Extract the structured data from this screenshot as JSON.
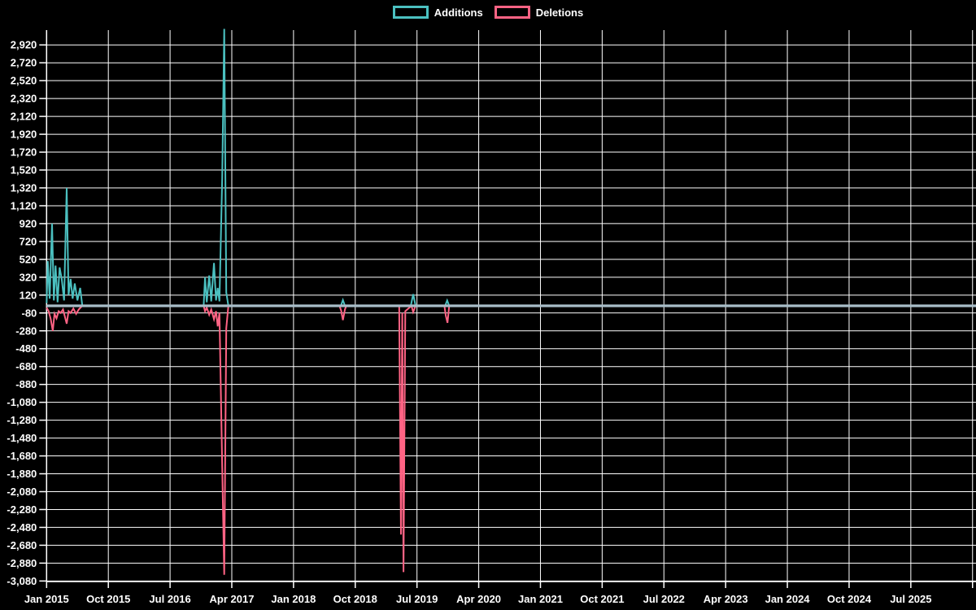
{
  "legend": {
    "items": [
      {
        "label": "Additions",
        "color": "#4BC0C0"
      },
      {
        "label": "Deletions",
        "color": "#FF6384"
      }
    ]
  },
  "chart_data": {
    "type": "line",
    "title": "",
    "xlabel": "",
    "ylabel": "",
    "grid": true,
    "legend_position": "top-center",
    "background_color": "#000000",
    "gridline_color": "#ffffff",
    "zero_line_color": "#A8BDC8",
    "x_axis": {
      "unit": "months since Jan 2015",
      "tick_labels": [
        "Jan 2015",
        "Oct 2015",
        "Jul 2016",
        "Apr 2017",
        "Jan 2018",
        "Oct 2018",
        "Jul 2019",
        "Apr 2020",
        "Jan 2021",
        "Oct 2021",
        "Jul 2022",
        "Apr 2023",
        "Jan 2024",
        "Oct 2024",
        "Jul 2025"
      ],
      "tick_month_offsets": [
        0,
        9,
        18,
        27,
        36,
        45,
        54,
        63,
        72,
        81,
        90,
        99,
        108,
        117,
        126
      ],
      "extra_gridline_month_offsets": [
        135
      ]
    },
    "y_axis": {
      "tick_labels": [
        "2,920",
        "2,720",
        "2,520",
        "2,320",
        "2,120",
        "1,920",
        "1,720",
        "1,520",
        "1,320",
        "1,120",
        "920",
        "720",
        "520",
        "320",
        "120",
        "-80",
        "-280",
        "-480",
        "-680",
        "-880",
        "-1,080",
        "-1,280",
        "-1,480",
        "-1,680",
        "-1,880",
        "-2,080",
        "-2,280",
        "-2,480",
        "-2,680",
        "-2,880",
        "-3,080"
      ],
      "tick_values": [
        2920,
        2720,
        2520,
        2320,
        2120,
        1920,
        1720,
        1520,
        1320,
        1120,
        920,
        720,
        520,
        320,
        120,
        -80,
        -280,
        -480,
        -680,
        -880,
        -1080,
        -1280,
        -1480,
        -1680,
        -1880,
        -2080,
        -2280,
        -2480,
        -2680,
        -2880,
        -3080
      ],
      "range": [
        -3086,
        3086
      ]
    },
    "series": [
      {
        "name": "Additions",
        "color": "#4BC0C0",
        "points": [
          [
            0,
            30
          ],
          [
            0.17,
            500
          ],
          [
            0.45,
            80
          ],
          [
            0.79,
            920
          ],
          [
            1.05,
            60
          ],
          [
            1.3,
            450
          ],
          [
            1.6,
            40
          ],
          [
            1.9,
            430
          ],
          [
            2.2,
            300
          ],
          [
            2.55,
            60
          ],
          [
            2.93,
            1320
          ],
          [
            3.2,
            120
          ],
          [
            3.5,
            300
          ],
          [
            3.8,
            80
          ],
          [
            4.1,
            250
          ],
          [
            4.5,
            60
          ],
          [
            4.9,
            200
          ],
          [
            5.2,
            0
          ],
          [
            22.9,
            0
          ],
          [
            23.1,
            320
          ],
          [
            23.35,
            40
          ],
          [
            23.7,
            340
          ],
          [
            24.0,
            50
          ],
          [
            24.4,
            480
          ],
          [
            24.7,
            60
          ],
          [
            24.95,
            200
          ],
          [
            25.2,
            50
          ],
          [
            25.6,
            1430
          ],
          [
            25.9,
            3100
          ],
          [
            26.2,
            150
          ],
          [
            26.5,
            0
          ],
          [
            42.9,
            0
          ],
          [
            43.2,
            65
          ],
          [
            43.5,
            0
          ],
          [
            53.1,
            0
          ],
          [
            53.45,
            130
          ],
          [
            53.8,
            0
          ],
          [
            58.1,
            0
          ],
          [
            58.4,
            60
          ],
          [
            58.7,
            0
          ],
          [
            135.5,
            0
          ]
        ]
      },
      {
        "name": "Deletions",
        "color": "#FF6384",
        "points": [
          [
            0,
            -20
          ],
          [
            0.3,
            -60
          ],
          [
            0.6,
            -150
          ],
          [
            0.9,
            -280
          ],
          [
            1.15,
            -90
          ],
          [
            1.45,
            -140
          ],
          [
            1.75,
            -60
          ],
          [
            2.05,
            -80
          ],
          [
            2.4,
            -40
          ],
          [
            2.93,
            -200
          ],
          [
            3.2,
            -60
          ],
          [
            3.5,
            -80
          ],
          [
            3.9,
            -30
          ],
          [
            4.3,
            -90
          ],
          [
            4.7,
            -40
          ],
          [
            5.2,
            0
          ],
          [
            22.9,
            0
          ],
          [
            23.1,
            -60
          ],
          [
            23.35,
            -20
          ],
          [
            23.7,
            -100
          ],
          [
            24.0,
            -40
          ],
          [
            24.4,
            -150
          ],
          [
            24.7,
            -60
          ],
          [
            24.95,
            -230
          ],
          [
            25.2,
            -80
          ],
          [
            25.6,
            -1800
          ],
          [
            25.9,
            -3010
          ],
          [
            26.2,
            -250
          ],
          [
            26.5,
            0
          ],
          [
            42.7,
            0
          ],
          [
            42.95,
            -55
          ],
          [
            43.2,
            -160
          ],
          [
            43.5,
            -40
          ],
          [
            43.7,
            0
          ],
          [
            51.4,
            0
          ],
          [
            51.67,
            -2560
          ],
          [
            51.85,
            -80
          ],
          [
            52.03,
            -2980
          ],
          [
            52.3,
            -60
          ],
          [
            53.2,
            0
          ],
          [
            53.45,
            -70
          ],
          [
            53.8,
            0
          ],
          [
            58.0,
            0
          ],
          [
            58.2,
            -110
          ],
          [
            58.45,
            -190
          ],
          [
            58.7,
            0
          ],
          [
            135.5,
            0
          ]
        ]
      }
    ]
  }
}
